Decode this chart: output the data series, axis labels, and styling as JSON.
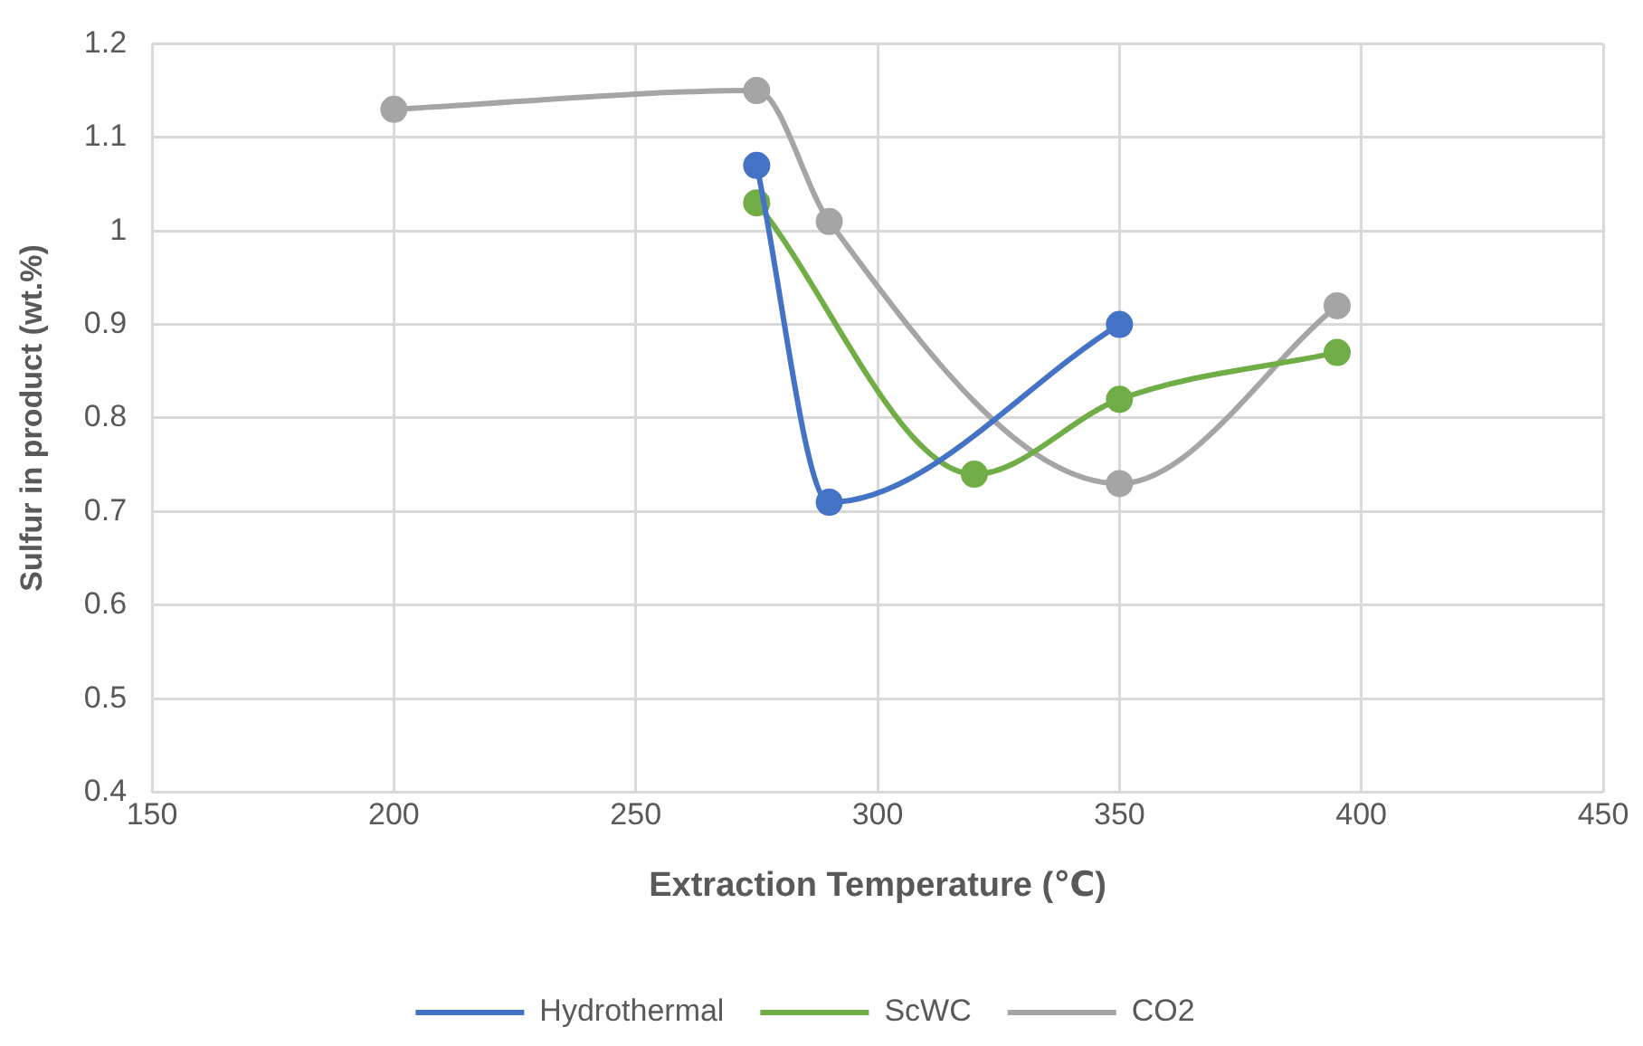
{
  "chart_data": {
    "type": "line",
    "xlabel": "Extraction Temperature (℃)",
    "ylabel": "Sulfur in product (wt.%)",
    "xlim": [
      150,
      450
    ],
    "xticks": [
      150,
      200,
      250,
      300,
      350,
      400,
      450
    ],
    "ylim": [
      0.4,
      1.2
    ],
    "yticks": [
      0.4,
      0.5,
      0.6,
      0.7,
      0.8,
      0.9,
      1,
      1.1,
      1.2
    ],
    "grid": true,
    "legend": "bottom",
    "marker": "circle",
    "line_style": "solid",
    "series": [
      {
        "name": "Hydrothermal",
        "color": "#4472c4",
        "x": [
          275,
          290,
          350
        ],
        "values": [
          1.07,
          0.71,
          0.9
        ]
      },
      {
        "name": "ScWC",
        "color": "#70ad47",
        "x": [
          275,
          320,
          350,
          395
        ],
        "values": [
          1.03,
          0.74,
          0.82,
          0.87
        ]
      },
      {
        "name": "CO2",
        "color": "#a5a5a5",
        "x": [
          200,
          275,
          290,
          350,
          395
        ],
        "values": [
          1.13,
          1.15,
          1.01,
          0.73,
          0.92
        ]
      }
    ]
  }
}
